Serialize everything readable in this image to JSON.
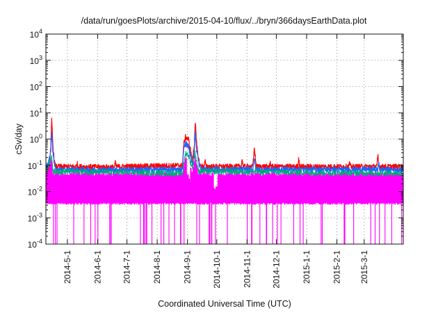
{
  "chart_data": {
    "type": "line",
    "title": "/data/run/goesPlots/archive/2015-04-10/flux/../bryn/366daysEarthData.plot",
    "xlabel": "Coordinated Universal Time (UTC)",
    "ylabel": "cSv/day",
    "y_scale": "log",
    "ylim": [
      0.0001,
      10000
    ],
    "xlim": [
      "2014-04-09",
      "2015-04-10"
    ],
    "grid": true,
    "legend": "none",
    "y_ticks": [
      {
        "value": 0.0001,
        "base": "10",
        "exp": "-4"
      },
      {
        "value": 0.001,
        "base": "10",
        "exp": "-3"
      },
      {
        "value": 0.01,
        "base": "10",
        "exp": "-2"
      },
      {
        "value": 0.1,
        "base": "10",
        "exp": "-1"
      },
      {
        "value": 1,
        "base": "10",
        "exp": "0"
      },
      {
        "value": 10,
        "base": "10",
        "exp": "1"
      },
      {
        "value": 100,
        "base": "10",
        "exp": "2"
      },
      {
        "value": 1000,
        "base": "10",
        "exp": "3"
      },
      {
        "value": 10000,
        "base": "10",
        "exp": "4"
      }
    ],
    "x_ticks": [
      {
        "date": "2014-05-01",
        "label": "2014-5-1"
      },
      {
        "date": "2014-06-01",
        "label": "2014-6-1"
      },
      {
        "date": "2014-07-01",
        "label": "2014-7-1"
      },
      {
        "date": "2014-08-01",
        "label": "2014-8-1"
      },
      {
        "date": "2014-09-01",
        "label": "2014-9-1"
      },
      {
        "date": "2014-10-01",
        "label": "2014-10-1"
      },
      {
        "date": "2014-11-01",
        "label": "2014-11-1"
      },
      {
        "date": "2014-12-01",
        "label": "2014-12-1"
      },
      {
        "date": "2015-01-01",
        "label": "2015-1-1"
      },
      {
        "date": "2015-02-01",
        "label": "2015-2-1"
      },
      {
        "date": "2015-03-01",
        "label": "2015-3-1"
      }
    ],
    "baseline": {
      "red": 0.085,
      "blue": 0.065,
      "green": 0.048,
      "magenta": 0.042,
      "magenta_floor": 0.0035
    },
    "series": [
      {
        "color": "#ff0000",
        "values": [
          [
            0.0,
            0.09
          ],
          [
            3.0,
            0.085
          ],
          [
            5.0,
            0.4
          ],
          [
            6.0,
            6.0
          ],
          [
            7.0,
            0.8
          ],
          [
            8.5,
            0.15
          ],
          [
            10.0,
            0.09
          ],
          [
            31.0,
            0.09
          ],
          [
            32.0,
            0.12
          ],
          [
            33.0,
            0.09
          ],
          [
            70.0,
            0.085
          ],
          [
            71.0,
            0.13
          ],
          [
            72.0,
            0.09
          ],
          [
            140.0,
            0.1
          ],
          [
            141.0,
            0.6
          ],
          [
            143.0,
            1.2
          ],
          [
            146.0,
            1.0
          ],
          [
            148.0,
            0.4
          ],
          [
            150.0,
            0.15
          ],
          [
            152.0,
            0.6
          ],
          [
            153.0,
            5.5
          ],
          [
            154.0,
            0.9
          ],
          [
            156.0,
            0.2
          ],
          [
            158.0,
            0.1
          ],
          [
            162.0,
            0.09
          ],
          [
            163.0,
            0.15
          ],
          [
            164.0,
            0.09
          ],
          [
            200.0,
            0.09
          ],
          [
            201.0,
            0.18
          ],
          [
            202.0,
            0.09
          ],
          [
            212.0,
            0.09
          ],
          [
            213.5,
            0.5
          ],
          [
            215.0,
            0.12
          ],
          [
            216.0,
            0.09
          ],
          [
            229.0,
            0.09
          ],
          [
            230.0,
            0.14
          ],
          [
            231.0,
            0.09
          ],
          [
            258.0,
            0.09
          ],
          [
            259.0,
            0.2
          ],
          [
            260.0,
            0.09
          ],
          [
            310.0,
            0.09
          ],
          [
            311.0,
            0.12
          ],
          [
            312.0,
            0.09
          ],
          [
            339.0,
            0.09
          ],
          [
            340.0,
            0.25
          ],
          [
            341.0,
            0.09
          ],
          [
            366.0,
            0.09
          ]
        ]
      },
      {
        "color": "#1f64ff",
        "values": [
          [
            0.0,
            0.068
          ],
          [
            5.0,
            0.3
          ],
          [
            6.0,
            2.4
          ],
          [
            7.0,
            0.4
          ],
          [
            9.0,
            0.09
          ],
          [
            11.0,
            0.068
          ],
          [
            140.0,
            0.07
          ],
          [
            141.0,
            0.4
          ],
          [
            143.0,
            0.7
          ],
          [
            146.0,
            0.55
          ],
          [
            148.0,
            0.25
          ],
          [
            150.0,
            0.12
          ],
          [
            152.0,
            0.3
          ],
          [
            153.0,
            2.4
          ],
          [
            154.0,
            0.5
          ],
          [
            157.0,
            0.1
          ],
          [
            159.0,
            0.07
          ],
          [
            212.0,
            0.07
          ],
          [
            213.5,
            0.22
          ],
          [
            215.0,
            0.07
          ],
          [
            340.0,
            0.07
          ],
          [
            341.0,
            0.12
          ],
          [
            342.0,
            0.07
          ],
          [
            366.0,
            0.068
          ]
        ]
      },
      {
        "color": "#00a878",
        "values": [
          [
            0.0,
            0.05
          ],
          [
            6.0,
            0.25
          ],
          [
            7.0,
            0.06
          ],
          [
            140.0,
            0.05
          ],
          [
            143.0,
            0.3
          ],
          [
            146.0,
            0.25
          ],
          [
            150.0,
            0.08
          ],
          [
            153.0,
            0.3
          ],
          [
            156.0,
            0.06
          ],
          [
            366.0,
            0.05
          ]
        ]
      },
      {
        "color": "#ff00ff",
        "values": [
          [
            0.0,
            0.045
          ],
          [
            6.0,
            0.15
          ],
          [
            7.0,
            0.045
          ],
          [
            140.0,
            0.045
          ],
          [
            143.0,
            0.2
          ],
          [
            146.0,
            0.15
          ],
          [
            150.0,
            0.05
          ],
          [
            153.0,
            0.2
          ],
          [
            156.0,
            0.045
          ],
          [
            366.0,
            0.045
          ]
        ]
      }
    ]
  }
}
